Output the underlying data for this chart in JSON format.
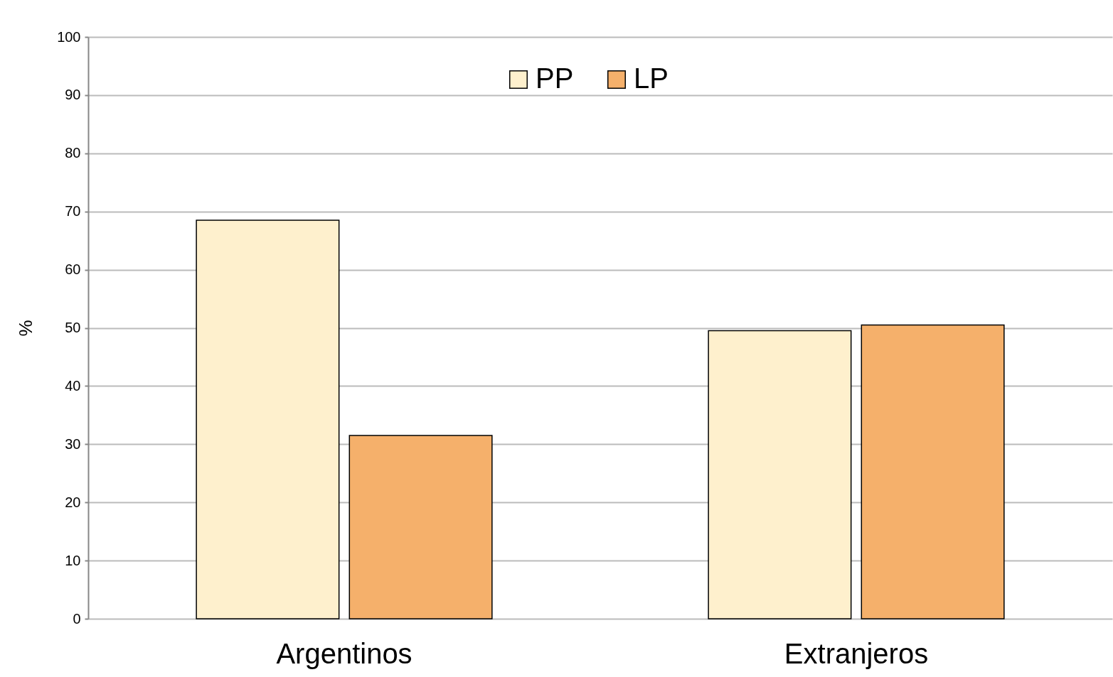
{
  "chart_data": {
    "type": "bar",
    "categories": [
      "Argentinos",
      "Extranjeros"
    ],
    "ylabel": "%",
    "ylim": [
      0,
      100
    ],
    "yticks": [
      0,
      10,
      20,
      30,
      40,
      50,
      60,
      70,
      80,
      90,
      100
    ],
    "grid": "y",
    "legend": "top",
    "series": [
      {
        "name": "PP",
        "color": "#fef0cd",
        "values": [
          68.5,
          49.5
        ]
      },
      {
        "name": "LP",
        "color": "#f5b06b",
        "values": [
          31.5,
          50.5
        ]
      }
    ]
  }
}
